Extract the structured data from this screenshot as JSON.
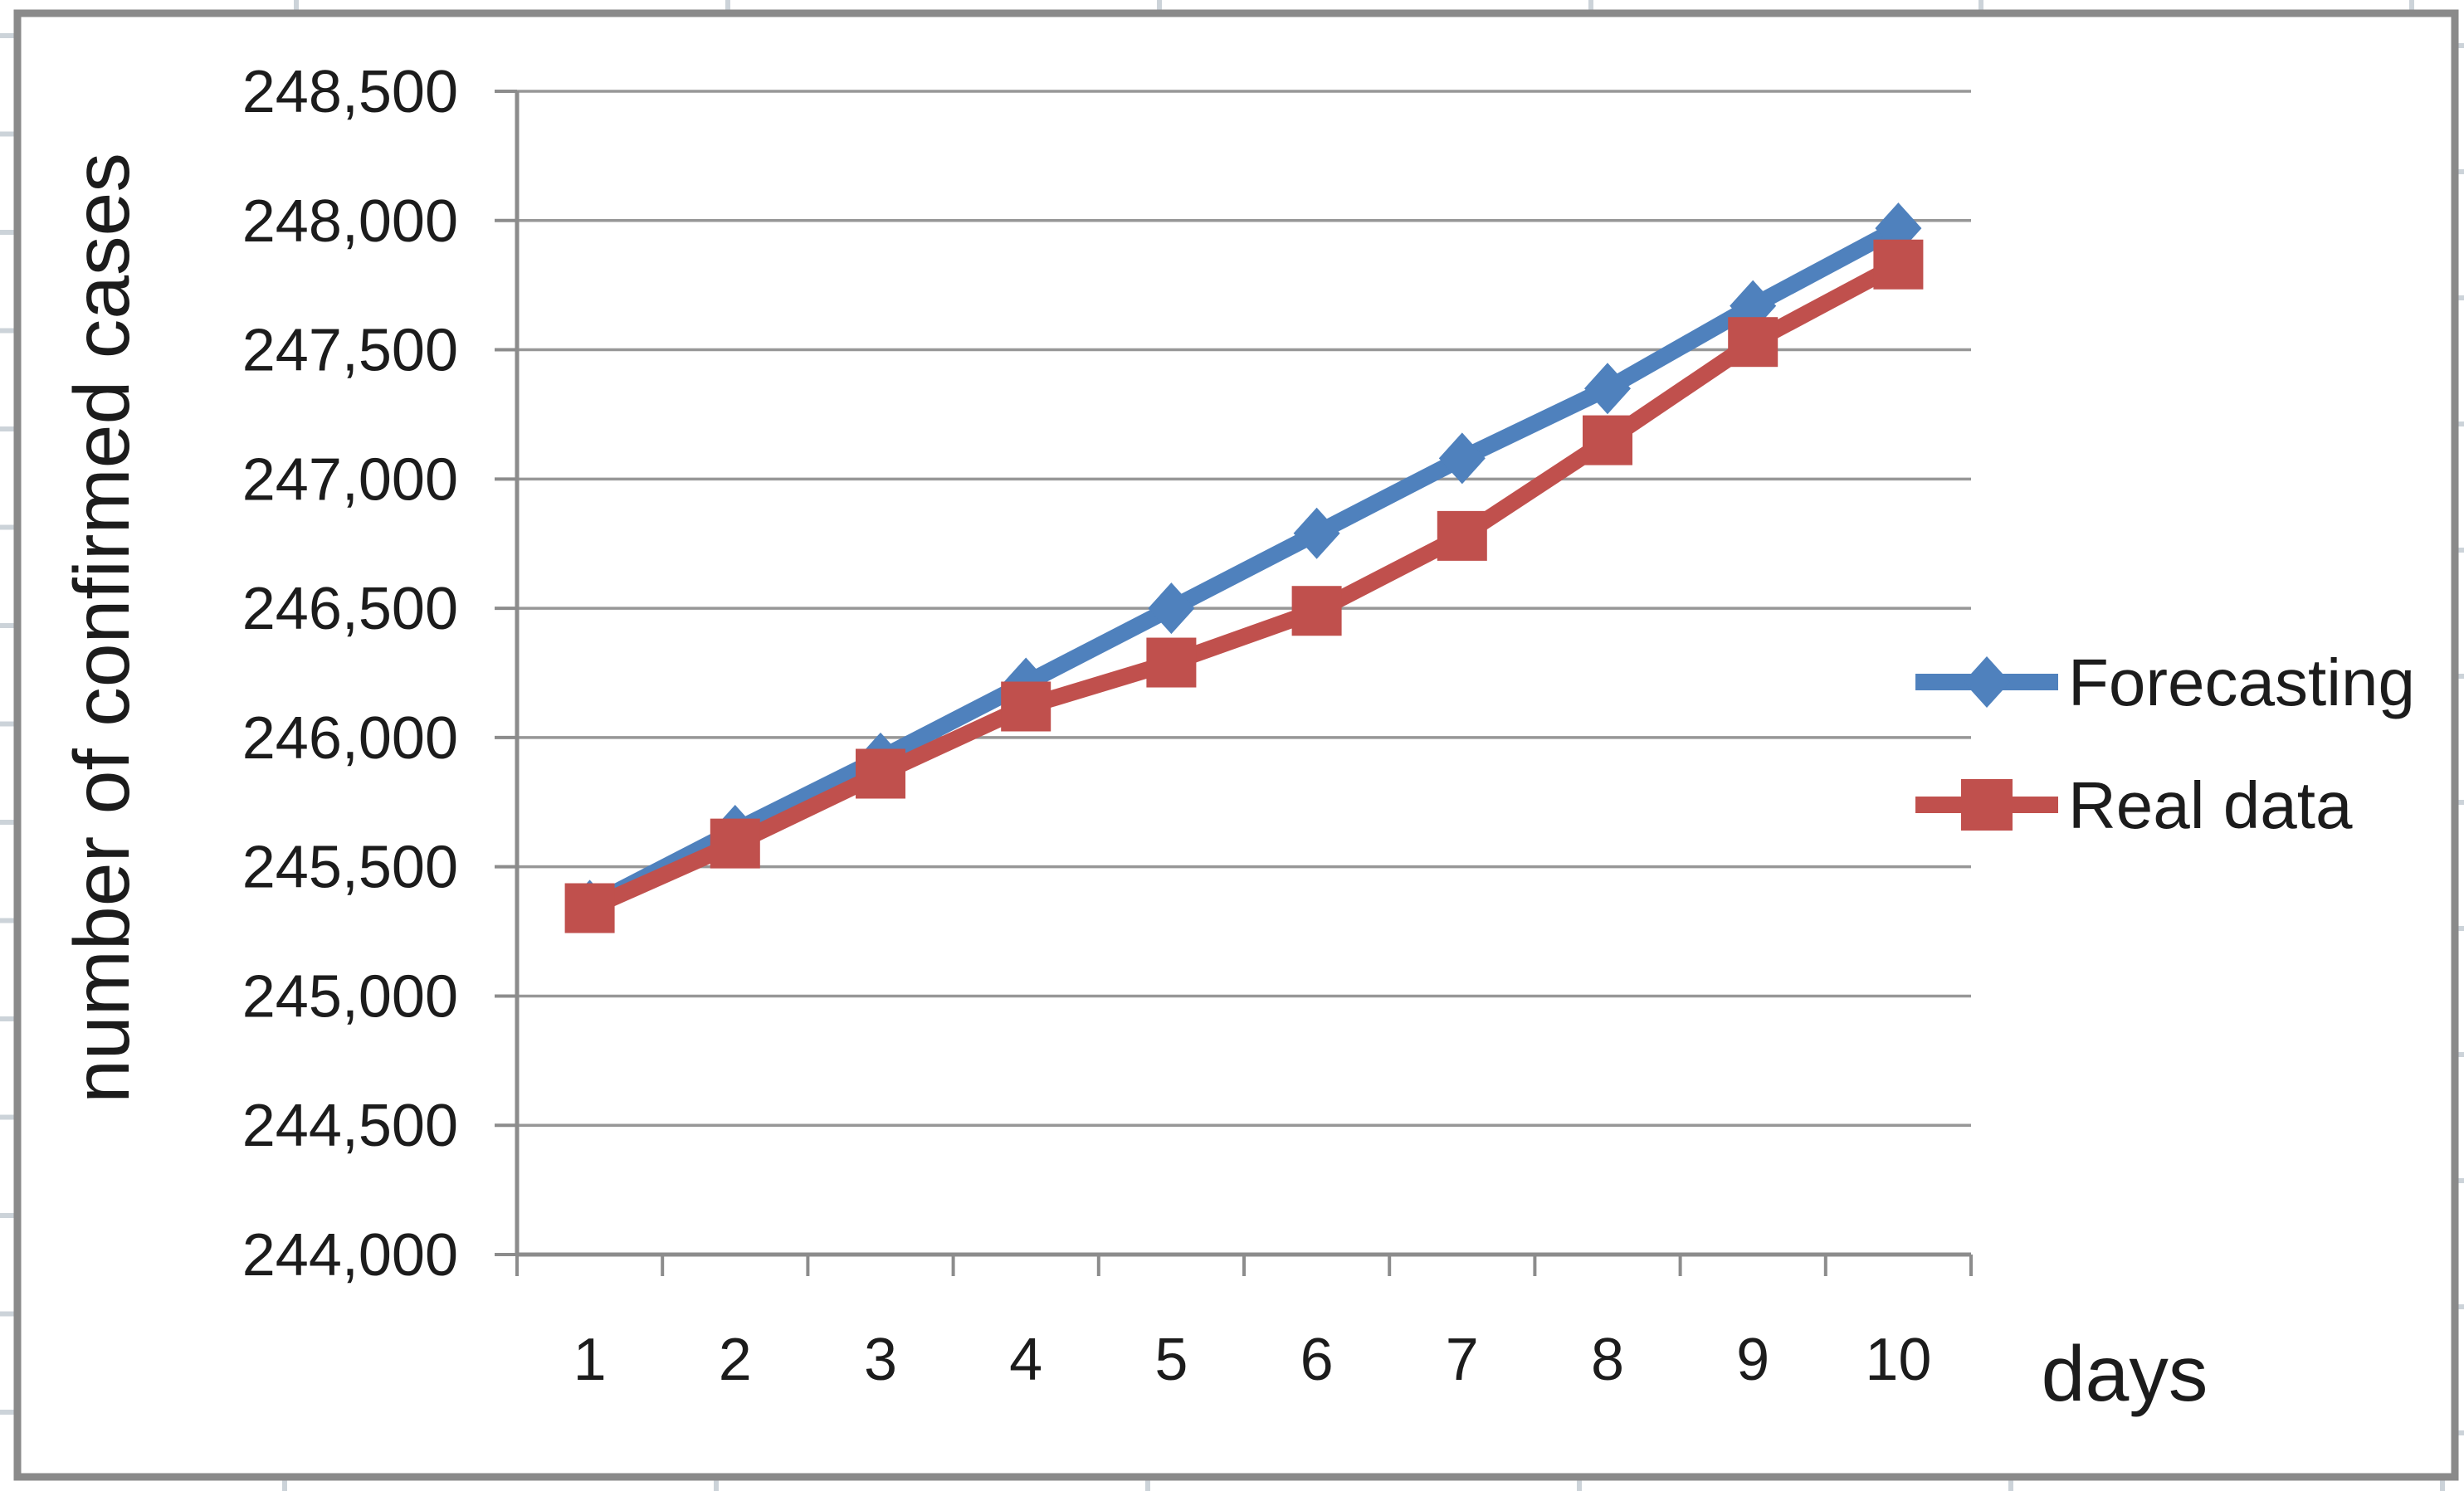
{
  "chart_data": {
    "type": "line",
    "title": "",
    "xlabel": "days",
    "ylabel": "number of confirmed cases",
    "categories": [
      1,
      2,
      3,
      4,
      5,
      6,
      7,
      8,
      9,
      10
    ],
    "xtick_labels": [
      "1",
      "2",
      "3",
      "4",
      "5",
      "6",
      "7",
      "8",
      "9",
      "10"
    ],
    "ytick_labels": [
      "244,000",
      "244,500",
      "245,000",
      "245,500",
      "246,000",
      "246,500",
      "247,000",
      "247,500",
      "248,000",
      "248,500"
    ],
    "ylim": [
      244000,
      248500
    ],
    "ytick_step": 500,
    "grid": true,
    "legend_position": "right",
    "series": [
      {
        "name": "Forecasting",
        "color": "#4F81BD",
        "marker": "diamond",
        "values": [
          245350,
          245640,
          245920,
          246210,
          246500,
          246790,
          247080,
          247350,
          247670,
          247970
        ]
      },
      {
        "name": "Real data",
        "color": "#C0504D",
        "marker": "square",
        "values": [
          245340,
          245590,
          245860,
          246120,
          246290,
          246490,
          246780,
          247150,
          247530,
          247830
        ]
      }
    ]
  }
}
